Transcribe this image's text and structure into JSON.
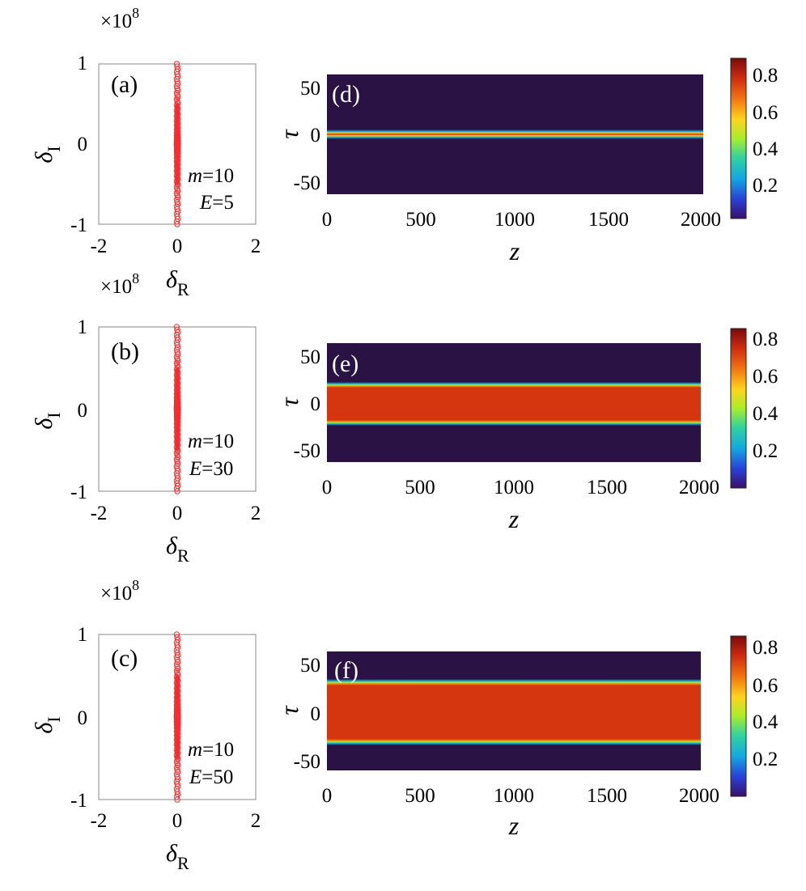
{
  "colors": {
    "background_dark": "#2b1245",
    "body_red": "#d6360f",
    "scatter_red": "#ff2a2a",
    "colormap": [
      "#3a0f6a",
      "#2840d8",
      "#12a8e2",
      "#30d3a0",
      "#a8ee2a",
      "#ffd31a",
      "#f27310",
      "#cc2a10",
      "#7a0a0a"
    ]
  },
  "chart_data": [
    {
      "id": "a",
      "type": "scatter",
      "panel_label": "(a)",
      "xlabel_main": "δ",
      "xlabel_sub": "R",
      "ylabel_main": "δ",
      "ylabel_sub": "I",
      "exponent_base": "×10",
      "exponent_power": "8",
      "xlim": [
        -2,
        2
      ],
      "ylim": [
        -1,
        1
      ],
      "xticks": [
        "-2",
        "0",
        "2"
      ],
      "yticks": [
        "-1",
        "0",
        "1"
      ],
      "points_description": "red circles stacked along δR = 0 spanning δI from -1e8 to 1e8",
      "series": [
        {
          "x": 0,
          "y_range": [
            -1,
            1
          ]
        }
      ],
      "annotation_m_label": "m",
      "annotation_m_value": "=10",
      "annotation_E_label": "E",
      "annotation_E_value": "=5"
    },
    {
      "id": "b",
      "type": "scatter",
      "panel_label": "(b)",
      "xlabel_main": "δ",
      "xlabel_sub": "R",
      "ylabel_main": "δ",
      "ylabel_sub": "I",
      "exponent_base": "×10",
      "exponent_power": "8",
      "xlim": [
        -2,
        2
      ],
      "ylim": [
        -1,
        1
      ],
      "xticks": [
        "-2",
        "0",
        "2"
      ],
      "yticks": [
        "-1",
        "0",
        "1"
      ],
      "series": [
        {
          "x": 0,
          "y_range": [
            -1,
            1
          ]
        }
      ],
      "annotation_m_label": "m",
      "annotation_m_value": "=10",
      "annotation_E_label": "E",
      "annotation_E_value": "=30"
    },
    {
      "id": "c",
      "type": "scatter",
      "panel_label": "(c)",
      "xlabel_main": "δ",
      "xlabel_sub": "R",
      "ylabel_main": "δ",
      "ylabel_sub": "I",
      "exponent_base": "×10",
      "exponent_power": "8",
      "xlim": [
        -2,
        2
      ],
      "ylim": [
        -1,
        1
      ],
      "xticks": [
        "-2",
        "0",
        "2"
      ],
      "yticks": [
        "-1",
        "0",
        "1"
      ],
      "series": [
        {
          "x": 0,
          "y_range": [
            -1,
            1
          ]
        }
      ],
      "annotation_m_label": "m",
      "annotation_m_value": "=10",
      "annotation_E_label": "E",
      "annotation_E_value": "=50"
    },
    {
      "id": "d",
      "type": "heatmap",
      "panel_label": "(d)",
      "xlabel": "z",
      "ylabel": "τ",
      "xlim": [
        0,
        2000
      ],
      "ylim": [
        -60,
        60
      ],
      "xticks": [
        "0",
        "500",
        "1000",
        "1500",
        "2000"
      ],
      "yticks": [
        "-50",
        "0",
        "50"
      ],
      "band_tau_range": [
        -4,
        4
      ],
      "band_peak": 0.85,
      "colorbar_range": [
        0,
        0.88
      ],
      "colorbar_ticks": [
        "0.2",
        "0.4",
        "0.6",
        "0.8"
      ]
    },
    {
      "id": "e",
      "type": "heatmap",
      "panel_label": "(e)",
      "xlabel": "z",
      "ylabel": "τ",
      "xlim": [
        0,
        2000
      ],
      "ylim": [
        -60,
        60
      ],
      "xticks": [
        "0",
        "500",
        "1000",
        "1500",
        "2000"
      ],
      "yticks": [
        "-50",
        "0",
        "50"
      ],
      "band_tau_range": [
        -19,
        20
      ],
      "band_peak": 0.7,
      "colorbar_range": [
        0,
        0.84
      ],
      "colorbar_ticks": [
        "0.2",
        "0.4",
        "0.6",
        "0.8"
      ]
    },
    {
      "id": "f",
      "type": "heatmap",
      "panel_label": "(f)",
      "xlabel": "z",
      "ylabel": "τ",
      "xlim": [
        0,
        2000
      ],
      "ylim": [
        -60,
        60
      ],
      "xticks": [
        "0",
        "500",
        "1000",
        "1500",
        "2000"
      ],
      "yticks": [
        "-50",
        "0",
        "50"
      ],
      "band_tau_range": [
        -31,
        34
      ],
      "band_peak": 0.7,
      "colorbar_range": [
        0,
        0.84
      ],
      "colorbar_ticks": [
        "0.2",
        "0.4",
        "0.6",
        "0.8"
      ]
    }
  ]
}
